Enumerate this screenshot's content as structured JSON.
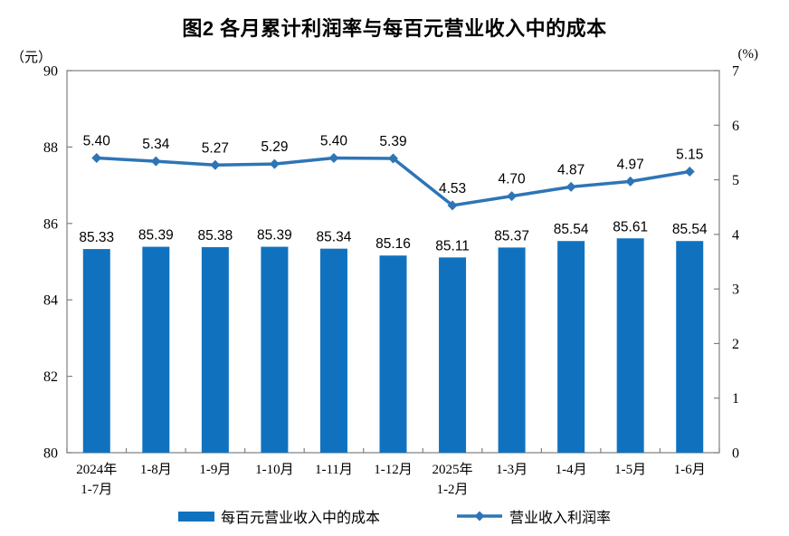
{
  "title": "图2 各月累计利润率与每百元营业收入中的成本",
  "left_axis_unit": "（元）",
  "right_axis_unit": "(%)",
  "legend": {
    "bar_label": "每百元营业收入中的成本",
    "line_label": "营业收入利润率"
  },
  "colors": {
    "bar": "#1072BF",
    "line": "#2E75B6",
    "axis": "#7F7F7F",
    "text": "#000000"
  },
  "chart_data": {
    "type": "combo",
    "title": "图2 各月累计利润率与每百元营业收入中的成本",
    "categories": [
      [
        "2024年",
        "1-7月"
      ],
      [
        "1-8月"
      ],
      [
        "1-9月"
      ],
      [
        "1-10月"
      ],
      [
        "1-11月"
      ],
      [
        "1-12月"
      ],
      [
        "2025年",
        "1-2月"
      ],
      [
        "1-3月"
      ],
      [
        "1-4月"
      ],
      [
        "1-5月"
      ],
      [
        "1-6月"
      ]
    ],
    "series": [
      {
        "name": "每百元营业收入中的成本",
        "kind": "bar",
        "axis": "left",
        "values": [
          85.33,
          85.39,
          85.38,
          85.39,
          85.34,
          85.16,
          85.11,
          85.37,
          85.54,
          85.61,
          85.54
        ]
      },
      {
        "name": "营业收入利润率",
        "kind": "line",
        "axis": "right",
        "values": [
          5.4,
          5.34,
          5.27,
          5.29,
          5.4,
          5.39,
          4.53,
          4.7,
          4.87,
          4.97,
          5.15
        ]
      }
    ],
    "left_axis": {
      "unit": "（元）",
      "min": 80,
      "max": 90,
      "step": 2,
      "ticks": [
        80,
        82,
        84,
        86,
        88,
        90
      ]
    },
    "right_axis": {
      "unit": "(%)",
      "min": 0,
      "max": 7,
      "step": 1,
      "ticks": [
        0,
        1,
        2,
        3,
        4,
        5,
        6,
        7
      ]
    },
    "grid": false,
    "legend_position": "bottom",
    "value_label_decimals": 2
  }
}
